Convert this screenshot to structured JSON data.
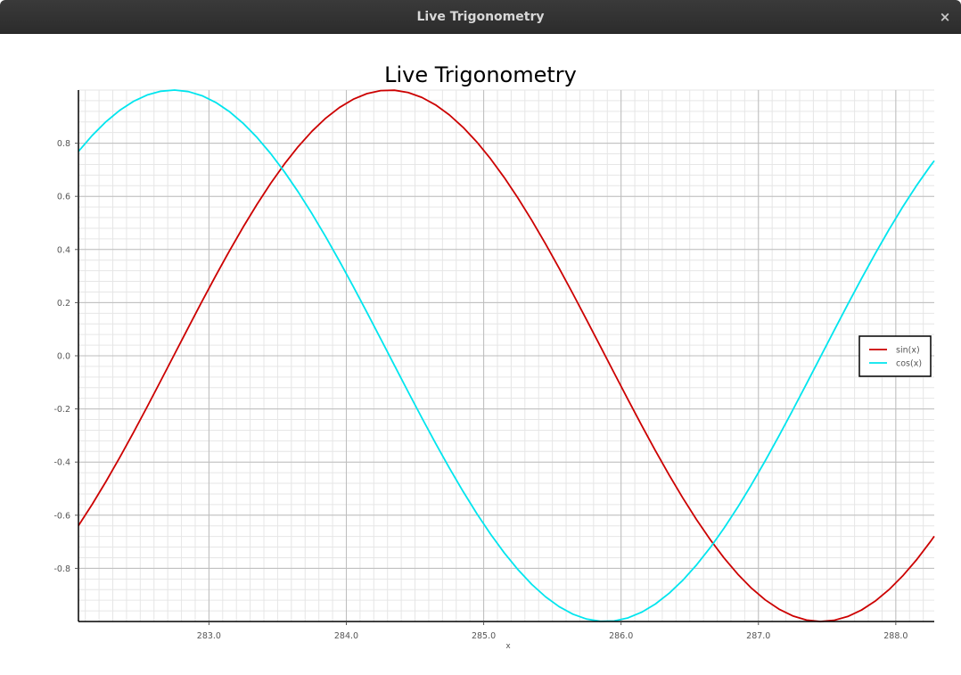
{
  "window": {
    "title": "Live Trigonometry",
    "close_glyph": "×",
    "close_icon": "close-icon"
  },
  "chart_data": {
    "type": "line",
    "title": "Live Trigonometry",
    "xlabel": "x",
    "ylabel": "",
    "xlim": [
      282.05,
      288.28
    ],
    "ylim": [
      -1.0,
      1.0
    ],
    "x_ticks": [
      "283.0",
      "284.0",
      "285.0",
      "286.0",
      "287.0",
      "288.0"
    ],
    "y_ticks": [
      "0.8",
      "0.6",
      "0.4",
      "0.2",
      "0.0",
      "-0.2",
      "-0.4",
      "-0.6",
      "-0.8"
    ],
    "grid": true,
    "minor_grid": true,
    "legend_position": "right",
    "x_start": 282.05,
    "x_end": 288.28,
    "x_step": 0.1,
    "series": [
      {
        "name": "sin(x)",
        "function": "sin",
        "color": "#cc0000"
      },
      {
        "name": "cos(x)",
        "function": "cos",
        "color": "#00e5ee"
      }
    ]
  }
}
